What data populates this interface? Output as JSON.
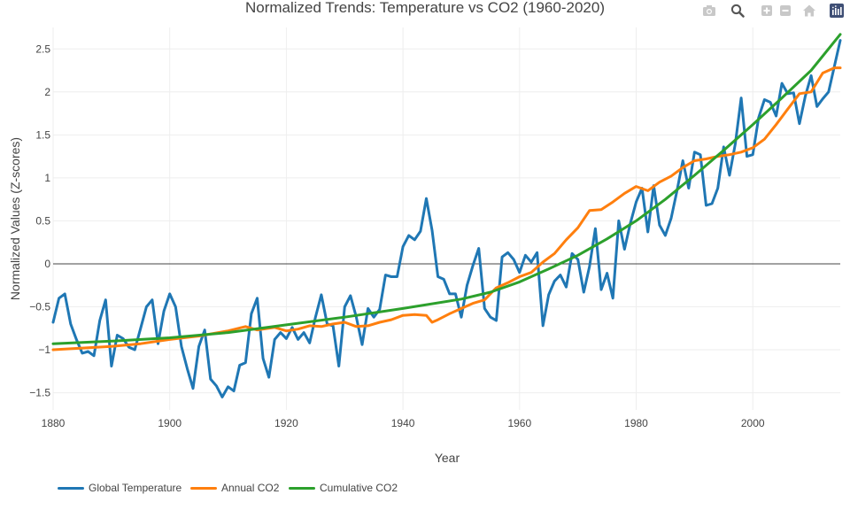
{
  "chart_data": {
    "type": "line",
    "title": "Normalized Trends: Temperature vs CO2 (1960-2020)",
    "xlabel": "Year",
    "ylabel": "Normalized Values (Z-scores)",
    "xlim": [
      1880,
      2015
    ],
    "ylim": [
      -1.7,
      2.75
    ],
    "x_ticks": [
      1880,
      1900,
      1920,
      1940,
      1960,
      1980,
      2000
    ],
    "y_ticks": [
      -1.5,
      -1,
      -0.5,
      0,
      0.5,
      1,
      1.5,
      2,
      2.5
    ],
    "grid": true,
    "legend_position": "bottom-left",
    "series": [
      {
        "name": "Global Temperature",
        "color": "#1f77b4",
        "x": [
          1880,
          1881,
          1882,
          1883,
          1884,
          1885,
          1886,
          1887,
          1888,
          1889,
          1890,
          1891,
          1892,
          1893,
          1894,
          1895,
          1896,
          1897,
          1898,
          1899,
          1900,
          1901,
          1902,
          1903,
          1904,
          1905,
          1906,
          1907,
          1908,
          1909,
          1910,
          1911,
          1912,
          1913,
          1914,
          1915,
          1916,
          1917,
          1918,
          1919,
          1920,
          1921,
          1922,
          1923,
          1924,
          1925,
          1926,
          1927,
          1928,
          1929,
          1930,
          1931,
          1932,
          1933,
          1934,
          1935,
          1936,
          1937,
          1938,
          1939,
          1940,
          1941,
          1942,
          1943,
          1944,
          1945,
          1946,
          1947,
          1948,
          1949,
          1950,
          1951,
          1952,
          1953,
          1954,
          1955,
          1956,
          1957,
          1958,
          1959,
          1960,
          1961,
          1962,
          1963,
          1964,
          1965,
          1966,
          1967,
          1968,
          1969,
          1970,
          1971,
          1972,
          1973,
          1974,
          1975,
          1976,
          1977,
          1978,
          1979,
          1980,
          1981,
          1982,
          1983,
          1984,
          1985,
          1986,
          1987,
          1988,
          1989,
          1990,
          1991,
          1992,
          1993,
          1994,
          1995,
          1996,
          1997,
          1998,
          1999,
          2000,
          2001,
          2002,
          2003,
          2004,
          2005,
          2006,
          2007,
          2008,
          2009,
          2010,
          2011,
          2012,
          2013,
          2014,
          2015
        ],
        "values": [
          -0.68,
          -0.4,
          -0.35,
          -0.7,
          -0.88,
          -1.04,
          -1.02,
          -1.07,
          -0.66,
          -0.42,
          -1.19,
          -0.83,
          -0.87,
          -0.97,
          -1.0,
          -0.75,
          -0.5,
          -0.42,
          -0.93,
          -0.55,
          -0.35,
          -0.5,
          -0.96,
          -1.22,
          -1.45,
          -0.96,
          -0.77,
          -1.34,
          -1.42,
          -1.55,
          -1.43,
          -1.48,
          -1.18,
          -1.15,
          -0.58,
          -0.4,
          -1.1,
          -1.32,
          -0.88,
          -0.8,
          -0.87,
          -0.74,
          -0.88,
          -0.8,
          -0.92,
          -0.62,
          -0.36,
          -0.7,
          -0.72,
          -1.19,
          -0.5,
          -0.37,
          -0.62,
          -0.94,
          -0.52,
          -0.62,
          -0.53,
          -0.13,
          -0.15,
          -0.15,
          0.2,
          0.33,
          0.28,
          0.38,
          0.76,
          0.39,
          -0.15,
          -0.18,
          -0.35,
          -0.35,
          -0.62,
          -0.25,
          -0.02,
          0.18,
          -0.52,
          -0.62,
          -0.66,
          0.08,
          0.13,
          0.05,
          -0.1,
          0.1,
          0.02,
          0.13,
          -0.72,
          -0.36,
          -0.2,
          -0.13,
          -0.27,
          0.12,
          0.05,
          -0.33,
          -0.03,
          0.41,
          -0.3,
          -0.11,
          -0.4,
          0.5,
          0.17,
          0.47,
          0.72,
          0.88,
          0.37,
          0.91,
          0.45,
          0.33,
          0.53,
          0.85,
          1.2,
          0.88,
          1.3,
          1.27,
          0.68,
          0.7,
          0.88,
          1.36,
          1.03,
          1.4,
          1.93,
          1.25,
          1.27,
          1.7,
          1.91,
          1.88,
          1.72,
          2.1,
          1.98,
          1.99,
          1.63,
          1.95,
          2.19,
          1.83,
          1.92,
          2.0,
          2.3,
          2.6
        ]
      },
      {
        "name": "Annual CO2",
        "color": "#ff7f0e",
        "x": [
          1880,
          1885,
          1890,
          1895,
          1900,
          1905,
          1910,
          1913,
          1915,
          1918,
          1920,
          1922,
          1924,
          1926,
          1928,
          1930,
          1932,
          1934,
          1936,
          1938,
          1940,
          1942,
          1944,
          1945,
          1946,
          1948,
          1950,
          1952,
          1954,
          1956,
          1958,
          1960,
          1962,
          1964,
          1966,
          1968,
          1970,
          1972,
          1974,
          1976,
          1978,
          1980,
          1982,
          1984,
          1986,
          1988,
          1990,
          1992,
          1994,
          1996,
          1998,
          2000,
          2002,
          2004,
          2006,
          2008,
          2010,
          2012,
          2014,
          2015
        ],
        "values": [
          -1.0,
          -0.98,
          -0.96,
          -0.93,
          -0.88,
          -0.84,
          -0.78,
          -0.73,
          -0.77,
          -0.74,
          -0.78,
          -0.76,
          -0.72,
          -0.73,
          -0.7,
          -0.68,
          -0.73,
          -0.72,
          -0.68,
          -0.65,
          -0.6,
          -0.59,
          -0.6,
          -0.68,
          -0.65,
          -0.58,
          -0.52,
          -0.46,
          -0.42,
          -0.28,
          -0.22,
          -0.15,
          -0.1,
          0.02,
          0.12,
          0.28,
          0.42,
          0.62,
          0.63,
          0.72,
          0.82,
          0.9,
          0.85,
          0.95,
          1.02,
          1.12,
          1.2,
          1.22,
          1.25,
          1.27,
          1.3,
          1.35,
          1.45,
          1.62,
          1.8,
          1.98,
          2.0,
          2.22,
          2.28,
          2.28
        ]
      },
      {
        "name": "Cumulative CO2",
        "color": "#2ca02c",
        "x": [
          1880,
          1890,
          1900,
          1910,
          1920,
          1930,
          1940,
          1950,
          1955,
          1960,
          1965,
          1970,
          1975,
          1980,
          1985,
          1990,
          1995,
          2000,
          2005,
          2010,
          2015
        ],
        "values": [
          -0.93,
          -0.9,
          -0.86,
          -0.8,
          -0.71,
          -0.62,
          -0.52,
          -0.41,
          -0.33,
          -0.21,
          -0.06,
          0.1,
          0.29,
          0.5,
          0.75,
          1.03,
          1.32,
          1.62,
          1.93,
          2.25,
          2.67
        ]
      }
    ]
  },
  "modebar": {
    "icons": [
      "camera-icon",
      "zoom-icon",
      "zoom-in-icon",
      "zoom-out-icon",
      "home-icon",
      "plotly-logo-icon"
    ]
  }
}
